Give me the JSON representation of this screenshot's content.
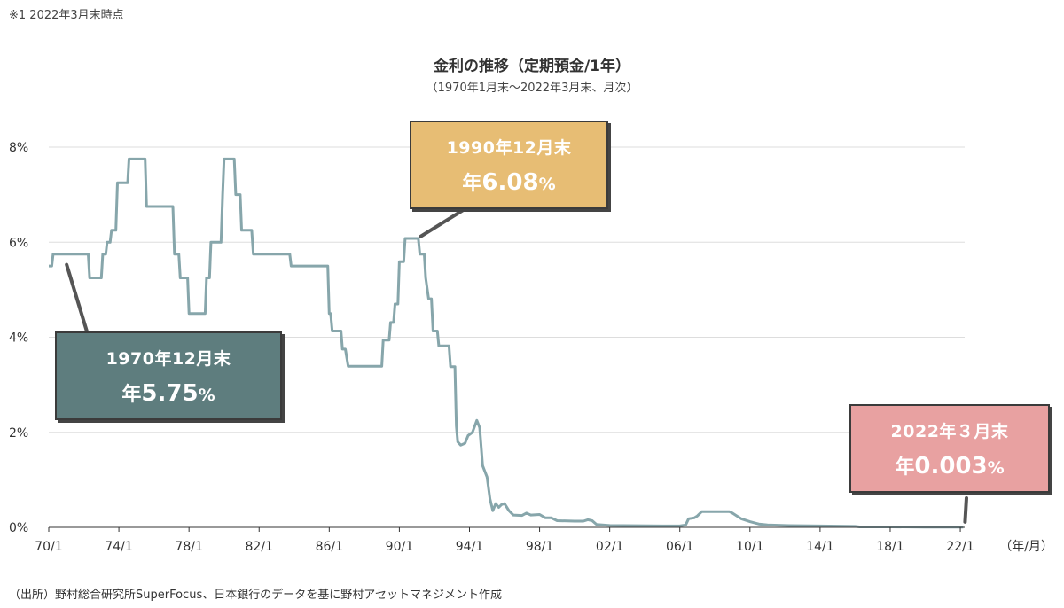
{
  "note": "※1 2022年3月末時点",
  "source": "（出所）野村総合研究所SuperFocus、日本銀行のデータを基に野村アセットマネジメント作成",
  "colors": {
    "line": "#87a6ab",
    "grid": "#dddddd",
    "axis": "#333333",
    "leader": "#555555"
  },
  "annotations": [
    {
      "line1": "1970年12月末",
      "prefix": "年",
      "value": "5.75",
      "unit": "%",
      "bg": "#5e7d7e",
      "x": 1970.92,
      "y": 5.75
    },
    {
      "line1": "1990年12月末",
      "prefix": "年",
      "value": "6.08",
      "unit": "%",
      "bg": "#e7bd74",
      "x": 1991.0,
      "y": 6.08
    },
    {
      "line1": "2022年３月末",
      "prefix": "年",
      "value": "0.003",
      "unit": "%",
      "bg": "#e8a1a1",
      "x": 2022.17,
      "y": 0.003
    }
  ],
  "chart_data": {
    "type": "line",
    "title": "金利の推移（定期預金/1年）",
    "subtitle": "（1970年1月末〜2022年3月末、月次）",
    "xlabel": "（年/月）",
    "ylabel": "",
    "xlim": [
      1970.0,
      2022.25
    ],
    "ylim": [
      0,
      8
    ],
    "grid": true,
    "xticks": [
      {
        "v": 1970,
        "label": "70/1"
      },
      {
        "v": 1974,
        "label": "74/1"
      },
      {
        "v": 1978,
        "label": "78/1"
      },
      {
        "v": 1982,
        "label": "82/1"
      },
      {
        "v": 1986,
        "label": "86/1"
      },
      {
        "v": 1990,
        "label": "90/1"
      },
      {
        "v": 1994,
        "label": "94/1"
      },
      {
        "v": 1998,
        "label": "98/1"
      },
      {
        "v": 2002,
        "label": "02/1"
      },
      {
        "v": 2006,
        "label": "06/1"
      },
      {
        "v": 2010,
        "label": "10/1"
      },
      {
        "v": 2014,
        "label": "14/1"
      },
      {
        "v": 2018,
        "label": "18/1"
      },
      {
        "v": 2022,
        "label": "22/1"
      }
    ],
    "yticks": [
      {
        "v": 0,
        "label": "0%"
      },
      {
        "v": 2,
        "label": "2%"
      },
      {
        "v": 4,
        "label": "4%"
      },
      {
        "v": 6,
        "label": "6%"
      },
      {
        "v": 8,
        "label": "8%"
      }
    ],
    "series": [
      {
        "values": [
          [
            1970.0,
            5.5
          ],
          [
            1970.17,
            5.5
          ],
          [
            1970.25,
            5.75
          ],
          [
            1972.25,
            5.75
          ],
          [
            1972.33,
            5.25
          ],
          [
            1973.0,
            5.25
          ],
          [
            1973.08,
            5.75
          ],
          [
            1973.25,
            5.75
          ],
          [
            1973.33,
            6.0
          ],
          [
            1973.5,
            6.0
          ],
          [
            1973.58,
            6.25
          ],
          [
            1973.83,
            6.25
          ],
          [
            1973.92,
            7.25
          ],
          [
            1974.5,
            7.25
          ],
          [
            1974.58,
            7.75
          ],
          [
            1975.5,
            7.75
          ],
          [
            1975.58,
            6.75
          ],
          [
            1977.08,
            6.75
          ],
          [
            1977.17,
            5.75
          ],
          [
            1977.42,
            5.75
          ],
          [
            1977.5,
            5.25
          ],
          [
            1977.92,
            5.25
          ],
          [
            1978.0,
            4.5
          ],
          [
            1978.92,
            4.5
          ],
          [
            1979.0,
            5.25
          ],
          [
            1979.17,
            5.25
          ],
          [
            1979.25,
            6.0
          ],
          [
            1979.83,
            6.0
          ],
          [
            1979.92,
            7.0
          ],
          [
            1980.0,
            7.75
          ],
          [
            1980.58,
            7.75
          ],
          [
            1980.67,
            7.0
          ],
          [
            1980.92,
            7.0
          ],
          [
            1981.0,
            6.25
          ],
          [
            1981.58,
            6.25
          ],
          [
            1981.67,
            5.75
          ],
          [
            1983.75,
            5.75
          ],
          [
            1983.83,
            5.5
          ],
          [
            1985.92,
            5.5
          ],
          [
            1986.0,
            4.5
          ],
          [
            1986.08,
            4.5
          ],
          [
            1986.17,
            4.13
          ],
          [
            1986.67,
            4.13
          ],
          [
            1986.75,
            3.75
          ],
          [
            1986.92,
            3.75
          ],
          [
            1987.08,
            3.39
          ],
          [
            1989.0,
            3.39
          ],
          [
            1989.08,
            3.94
          ],
          [
            1989.42,
            3.94
          ],
          [
            1989.5,
            4.31
          ],
          [
            1989.67,
            4.31
          ],
          [
            1989.75,
            4.7
          ],
          [
            1989.92,
            4.7
          ],
          [
            1990.0,
            5.59
          ],
          [
            1990.25,
            5.59
          ],
          [
            1990.33,
            6.08
          ],
          [
            1991.08,
            6.08
          ],
          [
            1991.17,
            5.75
          ],
          [
            1991.42,
            5.75
          ],
          [
            1991.5,
            5.25
          ],
          [
            1991.67,
            4.81
          ],
          [
            1991.83,
            4.81
          ],
          [
            1991.92,
            4.13
          ],
          [
            1992.17,
            4.13
          ],
          [
            1992.25,
            3.82
          ],
          [
            1992.83,
            3.82
          ],
          [
            1992.92,
            3.38
          ],
          [
            1993.17,
            3.38
          ],
          [
            1993.25,
            2.13
          ],
          [
            1993.33,
            1.8
          ],
          [
            1993.5,
            1.73
          ],
          [
            1993.75,
            1.77
          ],
          [
            1993.92,
            1.93
          ],
          [
            1994.17,
            2.0
          ],
          [
            1994.42,
            2.25
          ],
          [
            1994.58,
            2.1
          ],
          [
            1994.75,
            1.3
          ],
          [
            1995.0,
            1.06
          ],
          [
            1995.17,
            0.6
          ],
          [
            1995.33,
            0.35
          ],
          [
            1995.5,
            0.5
          ],
          [
            1995.67,
            0.42
          ],
          [
            1995.83,
            0.48
          ],
          [
            1996.0,
            0.5
          ],
          [
            1996.25,
            0.35
          ],
          [
            1996.5,
            0.26
          ],
          [
            1997.0,
            0.25
          ],
          [
            1997.25,
            0.3
          ],
          [
            1997.5,
            0.26
          ],
          [
            1998.0,
            0.27
          ],
          [
            1998.33,
            0.2
          ],
          [
            1998.67,
            0.2
          ],
          [
            1999.0,
            0.14
          ],
          [
            2000.0,
            0.13
          ],
          [
            2000.5,
            0.13
          ],
          [
            2000.75,
            0.16
          ],
          [
            2001.0,
            0.14
          ],
          [
            2001.25,
            0.06
          ],
          [
            2002.0,
            0.04
          ],
          [
            2005.0,
            0.03
          ],
          [
            2006.0,
            0.03
          ],
          [
            2006.33,
            0.05
          ],
          [
            2006.5,
            0.18
          ],
          [
            2006.83,
            0.2
          ],
          [
            2007.0,
            0.24
          ],
          [
            2007.25,
            0.33
          ],
          [
            2008.83,
            0.33
          ],
          [
            2009.0,
            0.3
          ],
          [
            2009.25,
            0.24
          ],
          [
            2009.5,
            0.18
          ],
          [
            2010.0,
            0.12
          ],
          [
            2010.5,
            0.07
          ],
          [
            2011.0,
            0.05
          ],
          [
            2012.0,
            0.04
          ],
          [
            2014.0,
            0.03
          ],
          [
            2016.0,
            0.02
          ],
          [
            2016.25,
            0.01
          ],
          [
            2018.0,
            0.01
          ],
          [
            2020.0,
            0.005
          ],
          [
            2022.17,
            0.003
          ]
        ]
      }
    ]
  }
}
